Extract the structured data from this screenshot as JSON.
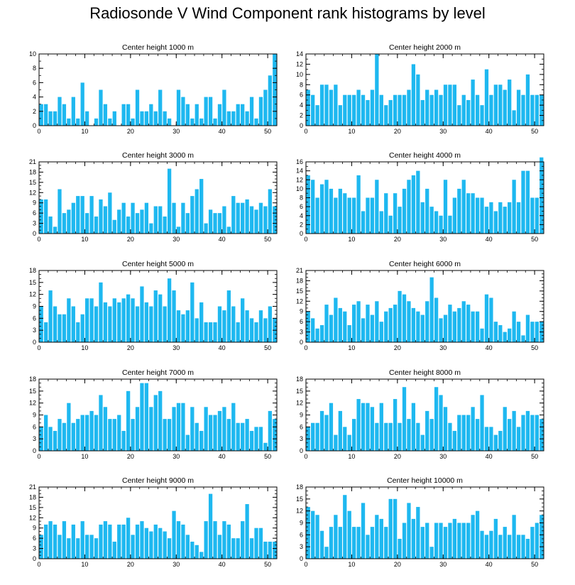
{
  "title": "Radiosonde V Wind Component rank histograms by level",
  "style": {
    "bar_color": "#1EB8F0",
    "axis_color": "#000000"
  },
  "chart_data": [
    {
      "type": "bar",
      "title": "Center height 1000 m",
      "xlim": [
        0,
        52
      ],
      "ylim": [
        0,
        10
      ],
      "xticks": [
        0,
        10,
        20,
        30,
        40,
        50
      ],
      "yticks": [
        0,
        2,
        4,
        6,
        8,
        10
      ],
      "values": [
        3,
        3,
        2,
        2,
        4,
        3,
        1,
        4,
        1,
        6,
        2,
        0,
        1,
        5,
        3,
        1,
        2,
        0,
        3,
        3,
        1,
        5,
        2,
        2,
        3,
        2,
        5,
        2,
        1,
        0,
        5,
        4,
        3,
        1,
        3,
        1,
        4,
        4,
        1,
        3,
        5,
        2,
        2,
        3,
        3,
        2,
        4,
        1,
        4,
        5,
        7,
        10
      ]
    },
    {
      "type": "bar",
      "title": "Center height 2000 m",
      "xlim": [
        0,
        52
      ],
      "ylim": [
        0,
        14
      ],
      "xticks": [
        0,
        10,
        20,
        30,
        40,
        50
      ],
      "yticks": [
        0,
        2,
        4,
        6,
        8,
        10,
        12,
        14
      ],
      "values": [
        7,
        6,
        4,
        8,
        8,
        7,
        8,
        4,
        6,
        6,
        6,
        7,
        6,
        5,
        7,
        14,
        6,
        4,
        5,
        6,
        6,
        6,
        7,
        12,
        10,
        5,
        7,
        6,
        7,
        6,
        8,
        8,
        8,
        4,
        6,
        5,
        9,
        6,
        4,
        11,
        6,
        8,
        8,
        7,
        9,
        3,
        7,
        6,
        10,
        6,
        6,
        6
      ]
    },
    {
      "type": "bar",
      "title": "Center height 3000 m",
      "xlim": [
        0,
        52
      ],
      "ylim": [
        0,
        21
      ],
      "xticks": [
        0,
        10,
        20,
        30,
        40,
        50
      ],
      "yticks": [
        0,
        3,
        6,
        9,
        12,
        15,
        18,
        21
      ],
      "values": [
        10,
        10,
        5,
        2,
        13,
        6,
        7,
        9,
        11,
        11,
        6,
        11,
        5,
        10,
        8,
        12,
        4,
        7,
        9,
        5,
        9,
        6,
        7,
        9,
        3,
        8,
        8,
        5,
        19,
        9,
        2,
        9,
        6,
        11,
        13,
        16,
        3,
        7,
        6,
        6,
        8,
        2,
        11,
        9,
        9,
        10,
        8,
        7,
        9,
        8,
        13,
        8
      ]
    },
    {
      "type": "bar",
      "title": "Center height 4000 m",
      "xlim": [
        0,
        52
      ],
      "ylim": [
        0,
        16
      ],
      "xticks": [
        0,
        10,
        20,
        30,
        40,
        50
      ],
      "yticks": [
        0,
        2,
        4,
        6,
        8,
        10,
        12,
        14,
        16
      ],
      "values": [
        13,
        12,
        8,
        11,
        12,
        10,
        8,
        10,
        9,
        8,
        8,
        13,
        5,
        8,
        8,
        12,
        5,
        9,
        4,
        9,
        6,
        10,
        12,
        13,
        14,
        7,
        10,
        6,
        5,
        4,
        12,
        4,
        8,
        10,
        12,
        9,
        9,
        8,
        8,
        6,
        7,
        5,
        7,
        6,
        7,
        12,
        7,
        14,
        14,
        8,
        8,
        17
      ]
    },
    {
      "type": "bar",
      "title": "Center height 5000 m",
      "xlim": [
        0,
        52
      ],
      "ylim": [
        0,
        18
      ],
      "xticks": [
        0,
        10,
        20,
        30,
        40,
        50
      ],
      "yticks": [
        0,
        3,
        6,
        9,
        12,
        15,
        18
      ],
      "values": [
        9,
        5,
        13,
        9,
        7,
        7,
        11,
        9,
        5,
        7,
        11,
        11,
        9,
        15,
        10,
        9,
        11,
        10,
        11,
        12,
        11,
        9,
        14,
        10,
        9,
        13,
        12,
        9,
        16,
        13,
        8,
        7,
        8,
        15,
        6,
        10,
        5,
        5,
        5,
        9,
        8,
        13,
        9,
        5,
        11,
        8,
        6,
        5,
        8,
        6,
        9,
        6
      ]
    },
    {
      "type": "bar",
      "title": "Center height 6000 m",
      "xlim": [
        0,
        52
      ],
      "ylim": [
        0,
        21
      ],
      "xticks": [
        0,
        10,
        20,
        30,
        40,
        50
      ],
      "yticks": [
        0,
        3,
        6,
        9,
        12,
        15,
        18,
        21
      ],
      "values": [
        9,
        7,
        4,
        5,
        11,
        8,
        13,
        10,
        9,
        5,
        11,
        12,
        7,
        11,
        8,
        12,
        6,
        9,
        10,
        11,
        15,
        14,
        12,
        10,
        9,
        8,
        12,
        19,
        13,
        7,
        8,
        11,
        9,
        10,
        12,
        11,
        9,
        9,
        4,
        14,
        13,
        6,
        5,
        3,
        4,
        9,
        6,
        2,
        8,
        6,
        6,
        6
      ]
    },
    {
      "type": "bar",
      "title": "Center height 7000 m",
      "xlim": [
        0,
        52
      ],
      "ylim": [
        0,
        18
      ],
      "xticks": [
        0,
        10,
        20,
        30,
        40,
        50
      ],
      "yticks": [
        0,
        3,
        6,
        9,
        12,
        15,
        18
      ],
      "values": [
        6,
        9,
        6,
        5,
        8,
        7,
        12,
        7,
        8,
        9,
        9,
        10,
        9,
        14,
        11,
        8,
        8,
        9,
        5,
        15,
        8,
        11,
        17,
        17,
        11,
        14,
        15,
        8,
        8,
        11,
        12,
        12,
        4,
        11,
        7,
        5,
        11,
        9,
        9,
        10,
        11,
        8,
        12,
        7,
        7,
        8,
        5,
        6,
        6,
        2,
        10,
        8
      ]
    },
    {
      "type": "bar",
      "title": "Center height 8000 m",
      "xlim": [
        0,
        52
      ],
      "ylim": [
        0,
        18
      ],
      "xticks": [
        0,
        10,
        20,
        30,
        40,
        50
      ],
      "yticks": [
        0,
        3,
        6,
        9,
        12,
        15,
        18
      ],
      "values": [
        6,
        7,
        7,
        10,
        9,
        12,
        4,
        10,
        6,
        4,
        8,
        13,
        12,
        12,
        11,
        7,
        12,
        7,
        7,
        13,
        7,
        16,
        8,
        12,
        7,
        4,
        10,
        8,
        16,
        14,
        11,
        7,
        5,
        9,
        9,
        9,
        11,
        8,
        14,
        6,
        6,
        4,
        5,
        11,
        8,
        10,
        6,
        9,
        10,
        9,
        9,
        8
      ]
    },
    {
      "type": "bar",
      "title": "Center height 9000 m",
      "xlim": [
        0,
        52
      ],
      "ylim": [
        0,
        21
      ],
      "xticks": [
        0,
        10,
        20,
        30,
        40,
        50
      ],
      "yticks": [
        0,
        3,
        6,
        9,
        12,
        15,
        18,
        21
      ],
      "values": [
        7,
        10,
        11,
        10,
        7,
        11,
        6,
        10,
        6,
        11,
        7,
        7,
        6,
        10,
        11,
        10,
        5,
        10,
        10,
        12,
        7,
        10,
        11,
        9,
        8,
        10,
        9,
        8,
        6,
        14,
        11,
        10,
        7,
        5,
        4,
        2,
        11,
        19,
        11,
        7,
        11,
        10,
        6,
        6,
        11,
        16,
        6,
        9,
        9,
        5,
        5,
        5
      ]
    },
    {
      "type": "bar",
      "title": "Center height 10000 m",
      "xlim": [
        0,
        52
      ],
      "ylim": [
        0,
        18
      ],
      "xticks": [
        0,
        10,
        20,
        30,
        40,
        50
      ],
      "yticks": [
        0,
        3,
        6,
        9,
        12,
        15,
        18
      ],
      "values": [
        13,
        12,
        11,
        7,
        3,
        8,
        11,
        8,
        16,
        12,
        8,
        8,
        14,
        6,
        8,
        11,
        10,
        8,
        15,
        15,
        5,
        9,
        14,
        10,
        13,
        8,
        9,
        3,
        9,
        9,
        8,
        9,
        10,
        9,
        9,
        9,
        11,
        12,
        7,
        6,
        7,
        10,
        6,
        8,
        6,
        11,
        6,
        6,
        5,
        8,
        9,
        11
      ]
    }
  ]
}
